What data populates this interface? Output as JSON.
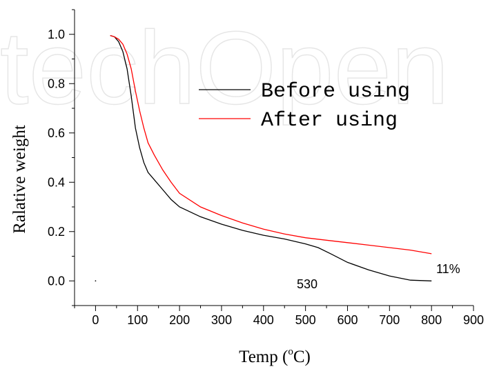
{
  "watermark": "techOpen",
  "chart_data": {
    "type": "line",
    "xlabel": "Temp (",
    "xlabel_sup": "o",
    "xlabel_end": "C)",
    "ylabel": "Ralative weight",
    "xlim": [
      -50,
      900
    ],
    "ylim": [
      -0.1,
      1.1
    ],
    "x_ticks": [
      0,
      100,
      200,
      300,
      400,
      500,
      600,
      700,
      800,
      900
    ],
    "y_ticks": [
      0.0,
      0.2,
      0.4,
      0.6,
      0.8,
      1.0
    ],
    "y_tick_labels": [
      "0.0",
      "0.2",
      "0.4",
      "0.6",
      "0.8",
      "1.0"
    ],
    "legend_position": "top-right",
    "annotations": [
      {
        "text": "530",
        "x": 510,
        "y": -0.01
      },
      {
        "text": "11%",
        "x": 848,
        "y": 0.05
      }
    ],
    "series": [
      {
        "name": "Before using",
        "color": "#000000",
        "points": [
          [
            35,
            0.995
          ],
          [
            45,
            0.99
          ],
          [
            55,
            0.97
          ],
          [
            65,
            0.93
          ],
          [
            75,
            0.86
          ],
          [
            85,
            0.75
          ],
          [
            95,
            0.62
          ],
          [
            105,
            0.54
          ],
          [
            115,
            0.48
          ],
          [
            125,
            0.44
          ],
          [
            140,
            0.41
          ],
          [
            160,
            0.37
          ],
          [
            180,
            0.33
          ],
          [
            200,
            0.3
          ],
          [
            250,
            0.26
          ],
          [
            300,
            0.23
          ],
          [
            350,
            0.205
          ],
          [
            400,
            0.185
          ],
          [
            450,
            0.17
          ],
          [
            500,
            0.15
          ],
          [
            530,
            0.135
          ],
          [
            560,
            0.11
          ],
          [
            600,
            0.075
          ],
          [
            650,
            0.045
          ],
          [
            700,
            0.02
          ],
          [
            750,
            0.003
          ],
          [
            800,
            0.0
          ]
        ]
      },
      {
        "name": "After using",
        "color": "#ff0000",
        "points": [
          [
            35,
            0.995
          ],
          [
            45,
            0.99
          ],
          [
            55,
            0.98
          ],
          [
            65,
            0.96
          ],
          [
            75,
            0.92
          ],
          [
            85,
            0.86
          ],
          [
            95,
            0.77
          ],
          [
            105,
            0.69
          ],
          [
            115,
            0.62
          ],
          [
            125,
            0.56
          ],
          [
            140,
            0.51
          ],
          [
            160,
            0.45
          ],
          [
            180,
            0.4
          ],
          [
            200,
            0.355
          ],
          [
            250,
            0.3
          ],
          [
            300,
            0.265
          ],
          [
            350,
            0.235
          ],
          [
            400,
            0.21
          ],
          [
            450,
            0.19
          ],
          [
            500,
            0.175
          ],
          [
            550,
            0.165
          ],
          [
            600,
            0.155
          ],
          [
            650,
            0.145
          ],
          [
            700,
            0.135
          ],
          [
            750,
            0.125
          ],
          [
            800,
            0.11
          ]
        ]
      }
    ]
  }
}
